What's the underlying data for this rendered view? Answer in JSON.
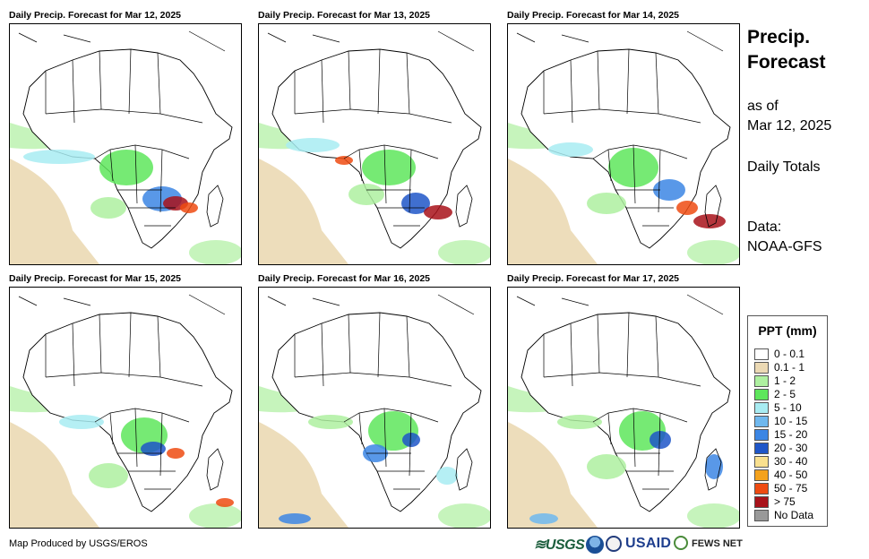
{
  "panels": [
    {
      "title": "Daily Precip. Forecast for Mar 12, 2025"
    },
    {
      "title": "Daily Precip. Forecast for Mar 13, 2025"
    },
    {
      "title": "Daily Precip. Forecast for Mar 14, 2025"
    },
    {
      "title": "Daily Precip. Forecast for Mar 15, 2025"
    },
    {
      "title": "Daily Precip. Forecast for Mar 16, 2025"
    },
    {
      "title": "Daily Precip. Forecast for Mar 17, 2025"
    }
  ],
  "sidebar": {
    "title_line1": "Precip.",
    "title_line2": "Forecast",
    "as_of_label": "as of",
    "as_of_date": "Mar 12, 2025",
    "totals": "Daily Totals",
    "data_label": "Data:",
    "data_source": "NOAA-GFS"
  },
  "legend": {
    "title": "PPT (mm)",
    "items": [
      {
        "label": "0 - 0.1",
        "color": "#ffffff"
      },
      {
        "label": "0.1 - 1",
        "color": "#ebd9b4"
      },
      {
        "label": "1 - 2",
        "color": "#aef0a0"
      },
      {
        "label": "2 - 5",
        "color": "#5ee65c"
      },
      {
        "label": "5 - 10",
        "color": "#a8ecf2"
      },
      {
        "label": "10 - 15",
        "color": "#6fb8ee"
      },
      {
        "label": "15 - 20",
        "color": "#3c86e4"
      },
      {
        "label": "20 - 30",
        "color": "#1f56c8"
      },
      {
        "label": "30 - 40",
        "color": "#f9e08e"
      },
      {
        "label": "40 - 50",
        "color": "#f4a21d"
      },
      {
        "label": "50 - 75",
        "color": "#ee4b12"
      },
      {
        "label": "> 75",
        "color": "#a8121a"
      },
      {
        "label": "No Data",
        "color": "#999999"
      }
    ]
  },
  "footer": {
    "credit": "Map Produced by USGS/EROS",
    "logos": {
      "usgs": "≋USGS",
      "usaid": "USAID",
      "fews": "FEWS NET"
    }
  }
}
